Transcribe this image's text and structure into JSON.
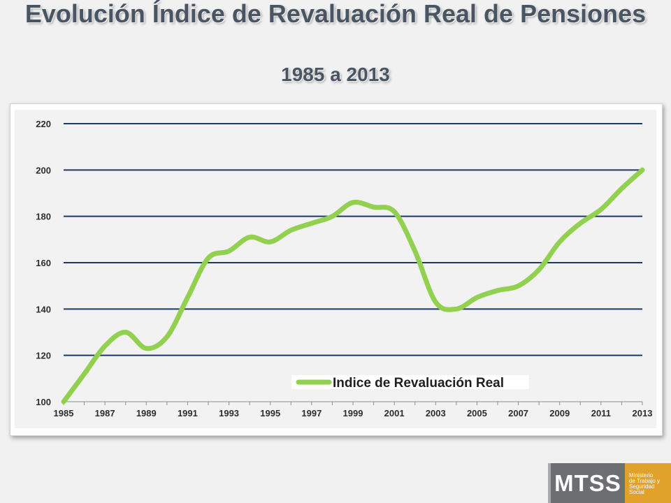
{
  "header": {
    "title": "Evolución Índice de Revaluación Real de Pensiones",
    "subtitle": "1985 a 2013"
  },
  "logo": {
    "abbr": "MTSS",
    "lines": [
      "Ministerio",
      "de Trabajo y",
      "Seguridad",
      "Social"
    ]
  },
  "colors": {
    "series": "#92d050",
    "gridline": "#1f3864",
    "background": "#f1f1f1"
  },
  "chart_data": {
    "type": "line",
    "title": "",
    "xlabel": "",
    "ylabel": "",
    "ylim": [
      100,
      220
    ],
    "y_ticks": [
      100,
      120,
      140,
      160,
      180,
      200,
      220
    ],
    "x_tick_labels": [
      "1985",
      "1987",
      "1989",
      "1991",
      "1993",
      "1995",
      "1997",
      "1999",
      "2001",
      "2003",
      "2005",
      "2007",
      "2009",
      "2011",
      "2013"
    ],
    "grid": true,
    "legend_position": "bottom-right",
    "series": [
      {
        "name": "Indice de Revaluación Real",
        "x": [
          1985,
          1986,
          1987,
          1988,
          1989,
          1990,
          1991,
          1992,
          1993,
          1994,
          1995,
          1996,
          1997,
          1998,
          1999,
          2000,
          2001,
          2002,
          2003,
          2004,
          2005,
          2006,
          2007,
          2008,
          2009,
          2010,
          2011,
          2012,
          2013
        ],
        "values": [
          100,
          112,
          124,
          130,
          123,
          128,
          145,
          162,
          165,
          171,
          169,
          174,
          177,
          180,
          186,
          184,
          182,
          165,
          143,
          140,
          145,
          148,
          150,
          157,
          169,
          177,
          183,
          192,
          200
        ]
      }
    ]
  }
}
